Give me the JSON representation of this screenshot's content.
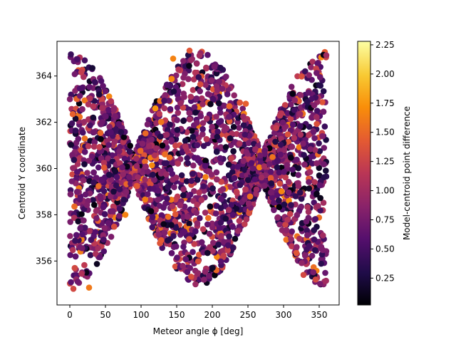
{
  "chart_data": {
    "type": "scatter",
    "title": "",
    "xlabel": "Meteor angle ϕ [deg]",
    "ylabel": "Centroid Y coordinate",
    "colorbar_label": "Model-centroid point difference",
    "colormap": "inferno",
    "xlim": [
      -18,
      378
    ],
    "ylim": [
      354.1,
      365.5
    ],
    "clim": [
      0.02,
      2.28
    ],
    "x_ticks": [
      0,
      50,
      100,
      150,
      200,
      250,
      300,
      350
    ],
    "y_ticks": [
      356,
      358,
      360,
      362,
      364
    ],
    "colorbar_ticks": [
      0.25,
      0.5,
      0.75,
      1.0,
      1.25,
      1.5,
      1.75,
      2.0,
      2.25
    ],
    "colorbar_tick_labels": [
      "0.25",
      "0.50",
      "0.75",
      "1.00",
      "1.25",
      "1.50",
      "1.75",
      "2.00",
      "2.25"
    ],
    "grid": false,
    "description_of_distribution": "Envelope of centroid Y follows 360 ± 4.6|cos(ϕ)|, dense cloud of ~3000 points",
    "envelope": {
      "center": 360.0,
      "amplitude": 4.6,
      "min_half_width": 0.6,
      "n_points": 3000
    },
    "outliers": [
      {
        "x": 5,
        "y": 354.8,
        "c": 1.3
      },
      {
        "x": 27,
        "y": 354.85,
        "c": 1.6
      },
      {
        "x": 145,
        "y": 364.75,
        "c": 1.65
      },
      {
        "x": 168,
        "y": 365.1,
        "c": 1.4
      },
      {
        "x": 345,
        "y": 355.2,
        "c": 1.3
      },
      {
        "x": 328,
        "y": 355.4,
        "c": 1.3
      },
      {
        "x": 120,
        "y": 362.6,
        "c": 1.75
      },
      {
        "x": 247,
        "y": 362.8,
        "c": 1.45
      },
      {
        "x": 78,
        "y": 358.0,
        "c": 1.65
      },
      {
        "x": 360,
        "y": 364.9,
        "c": 1.0
      }
    ]
  }
}
